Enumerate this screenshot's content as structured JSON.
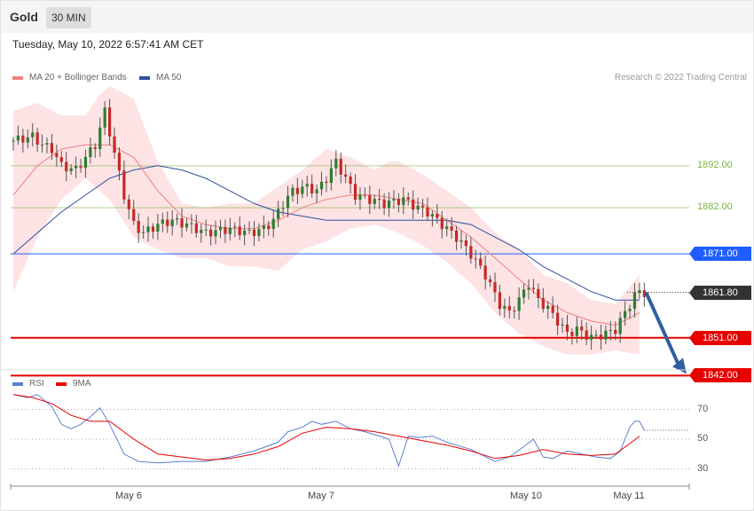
{
  "header": {
    "title": "Gold",
    "timeframe": "30 MIN"
  },
  "datetime": "Tuesday, May 10, 2022 6:57:41 AM CET",
  "legend": {
    "ma20_label": "MA 20 + Bollinger Bands",
    "ma50_label": "MA 50",
    "credit": "Research © 2022 Trading Central"
  },
  "colors": {
    "ma20": "#f08080",
    "ma50": "#2f4f9f",
    "band": "#fde3e3",
    "resistance": "#7cb342",
    "pivot": "#1e5eff",
    "support": "#e60000",
    "last": "#333333",
    "arrow": "#2f5fa0",
    "up": "#2e7d32",
    "down": "#c62828",
    "rsi": "#5b7fd6",
    "rsi_ma": "#e60000"
  },
  "chart_data": [
    {
      "type": "candlestick",
      "title": "Gold",
      "interval": "30 MIN",
      "ylim": [
        1835,
        1917
      ],
      "x_ticks": [
        "May 6",
        "May 7",
        "May 10",
        "May 11"
      ],
      "levels": [
        {
          "label": "1892.00",
          "value": 1892,
          "kind": "resistance"
        },
        {
          "label": "1882.00",
          "value": 1882,
          "kind": "resistance"
        },
        {
          "label": "1871.00",
          "value": 1871,
          "kind": "pivot"
        },
        {
          "label": "1861.80",
          "value": 1861.8,
          "kind": "last"
        },
        {
          "label": "1851.00",
          "value": 1851,
          "kind": "support"
        },
        {
          "label": "1842.00",
          "value": 1842,
          "kind": "support"
        }
      ],
      "close_points": [
        [
          0,
          1898
        ],
        [
          4,
          1899
        ],
        [
          6,
          1897
        ],
        [
          8,
          1896
        ],
        [
          10,
          1892
        ],
        [
          13,
          1891
        ],
        [
          15,
          1894
        ],
        [
          17,
          1897
        ],
        [
          19,
          1905
        ],
        [
          21,
          1895
        ],
        [
          23,
          1885
        ],
        [
          25,
          1878
        ],
        [
          27,
          1876
        ],
        [
          30,
          1878
        ],
        [
          33,
          1879
        ],
        [
          36,
          1878
        ],
        [
          40,
          1876
        ],
        [
          45,
          1877
        ],
        [
          49,
          1876
        ],
        [
          52,
          1877
        ],
        [
          54,
          1879
        ],
        [
          56,
          1883
        ],
        [
          58,
          1886
        ],
        [
          61,
          1887
        ],
        [
          63,
          1886
        ],
        [
          65,
          1889
        ],
        [
          67,
          1893
        ],
        [
          69,
          1889
        ],
        [
          71,
          1885
        ],
        [
          74,
          1884
        ],
        [
          77,
          1883
        ],
        [
          81,
          1884
        ],
        [
          84,
          1882
        ],
        [
          86,
          1881
        ],
        [
          89,
          1878
        ],
        [
          92,
          1875
        ],
        [
          95,
          1871
        ],
        [
          98,
          1866
        ],
        [
          101,
          1859
        ],
        [
          103,
          1857
        ],
        [
          105,
          1860
        ],
        [
          107,
          1864
        ],
        [
          109,
          1860
        ],
        [
          111,
          1858
        ],
        [
          113,
          1855
        ],
        [
          115,
          1852
        ],
        [
          117,
          1853
        ],
        [
          120,
          1851
        ],
        [
          123,
          1852
        ],
        [
          125,
          1853
        ],
        [
          127,
          1857
        ],
        [
          129,
          1861
        ],
        [
          130,
          1862
        ],
        [
          131,
          1861.8
        ]
      ],
      "ma20": [
        [
          0,
          1885
        ],
        [
          5,
          1892
        ],
        [
          10,
          1896
        ],
        [
          15,
          1897
        ],
        [
          20,
          1897
        ],
        [
          25,
          1894
        ],
        [
          30,
          1886
        ],
        [
          35,
          1880
        ],
        [
          40,
          1878
        ],
        [
          45,
          1877
        ],
        [
          50,
          1877
        ],
        [
          55,
          1879
        ],
        [
          60,
          1882
        ],
        [
          65,
          1884
        ],
        [
          70,
          1885
        ],
        [
          75,
          1885
        ],
        [
          80,
          1884
        ],
        [
          85,
          1883
        ],
        [
          90,
          1879
        ],
        [
          95,
          1875
        ],
        [
          100,
          1870
        ],
        [
          105,
          1865
        ],
        [
          110,
          1860
        ],
        [
          115,
          1857
        ],
        [
          120,
          1855
        ],
        [
          125,
          1854
        ],
        [
          130,
          1857
        ]
      ],
      "upper_band": [
        [
          0,
          1905
        ],
        [
          5,
          1907
        ],
        [
          10,
          1904
        ],
        [
          15,
          1904
        ],
        [
          18,
          1909
        ],
        [
          20,
          1911
        ],
        [
          25,
          1908
        ],
        [
          30,
          1893
        ],
        [
          35,
          1883
        ],
        [
          40,
          1882
        ],
        [
          45,
          1883
        ],
        [
          50,
          1883
        ],
        [
          55,
          1887
        ],
        [
          60,
          1891
        ],
        [
          65,
          1896
        ],
        [
          70,
          1894
        ],
        [
          75,
          1891
        ],
        [
          78,
          1893
        ],
        [
          80,
          1893
        ],
        [
          85,
          1890
        ],
        [
          90,
          1886
        ],
        [
          95,
          1882
        ],
        [
          100,
          1876
        ],
        [
          105,
          1872
        ],
        [
          110,
          1866
        ],
        [
          115,
          1864
        ],
        [
          120,
          1860
        ],
        [
          125,
          1859
        ],
        [
          130,
          1866
        ]
      ],
      "lower_band": [
        [
          0,
          1862
        ],
        [
          5,
          1875
        ],
        [
          10,
          1884
        ],
        [
          15,
          1889
        ],
        [
          20,
          1884
        ],
        [
          25,
          1875
        ],
        [
          30,
          1872
        ],
        [
          35,
          1870
        ],
        [
          40,
          1870
        ],
        [
          45,
          1868
        ],
        [
          50,
          1868
        ],
        [
          55,
          1867
        ],
        [
          60,
          1872
        ],
        [
          65,
          1874
        ],
        [
          70,
          1877
        ],
        [
          75,
          1878
        ],
        [
          80,
          1876
        ],
        [
          85,
          1873
        ],
        [
          90,
          1869
        ],
        [
          95,
          1864
        ],
        [
          100,
          1857
        ],
        [
          105,
          1852
        ],
        [
          110,
          1849
        ],
        [
          115,
          1847
        ],
        [
          120,
          1847
        ],
        [
          125,
          1848
        ],
        [
          130,
          1847
        ]
      ],
      "ma50": [
        [
          0,
          1871
        ],
        [
          5,
          1876
        ],
        [
          10,
          1881
        ],
        [
          15,
          1885
        ],
        [
          20,
          1889
        ],
        [
          25,
          1891
        ],
        [
          30,
          1892
        ],
        [
          35,
          1891
        ],
        [
          40,
          1889
        ],
        [
          45,
          1886
        ],
        [
          50,
          1883
        ],
        [
          55,
          1881
        ],
        [
          60,
          1880
        ],
        [
          65,
          1879
        ],
        [
          70,
          1879
        ],
        [
          75,
          1879
        ],
        [
          80,
          1879
        ],
        [
          85,
          1879
        ],
        [
          90,
          1879
        ],
        [
          95,
          1878
        ],
        [
          100,
          1875
        ],
        [
          105,
          1872
        ],
        [
          110,
          1868
        ],
        [
          115,
          1865
        ],
        [
          120,
          1862
        ],
        [
          125,
          1860
        ],
        [
          130,
          1860
        ]
      ]
    },
    {
      "type": "line",
      "title": "RSI",
      "series": [
        {
          "name": "RSI"
        },
        {
          "name": "9MA"
        }
      ],
      "ylim": [
        20,
        85
      ],
      "y_ticks": [
        "70",
        "50",
        "30"
      ],
      "rsi": [
        [
          0,
          80
        ],
        [
          3,
          78
        ],
        [
          5,
          80
        ],
        [
          8,
          72
        ],
        [
          10,
          60
        ],
        [
          12,
          57
        ],
        [
          14,
          60
        ],
        [
          16,
          65
        ],
        [
          18,
          71
        ],
        [
          20,
          60
        ],
        [
          23,
          40
        ],
        [
          26,
          35
        ],
        [
          30,
          34
        ],
        [
          35,
          35
        ],
        [
          40,
          35
        ],
        [
          45,
          38
        ],
        [
          50,
          42
        ],
        [
          55,
          48
        ],
        [
          57,
          55
        ],
        [
          60,
          58
        ],
        [
          62,
          62
        ],
        [
          64,
          60
        ],
        [
          67,
          62
        ],
        [
          70,
          57
        ],
        [
          73,
          55
        ],
        [
          76,
          52
        ],
        [
          78,
          50
        ],
        [
          80,
          32
        ],
        [
          82,
          52
        ],
        [
          84,
          51
        ],
        [
          87,
          52
        ],
        [
          90,
          48
        ],
        [
          95,
          43
        ],
        [
          100,
          35
        ],
        [
          103,
          38
        ],
        [
          106,
          45
        ],
        [
          108,
          50
        ],
        [
          110,
          38
        ],
        [
          112,
          37
        ],
        [
          115,
          42
        ],
        [
          118,
          40
        ],
        [
          121,
          38
        ],
        [
          124,
          37
        ],
        [
          126,
          42
        ],
        [
          128,
          58
        ],
        [
          129,
          62
        ],
        [
          130,
          62
        ],
        [
          131,
          56
        ]
      ],
      "rsi_ma": [
        [
          0,
          80
        ],
        [
          4,
          78
        ],
        [
          8,
          74
        ],
        [
          12,
          66
        ],
        [
          16,
          62
        ],
        [
          20,
          62
        ],
        [
          25,
          50
        ],
        [
          30,
          40
        ],
        [
          35,
          38
        ],
        [
          40,
          36
        ],
        [
          45,
          37
        ],
        [
          50,
          40
        ],
        [
          55,
          45
        ],
        [
          60,
          54
        ],
        [
          65,
          58
        ],
        [
          70,
          57
        ],
        [
          75,
          55
        ],
        [
          80,
          52
        ],
        [
          85,
          49
        ],
        [
          90,
          46
        ],
        [
          95,
          42
        ],
        [
          100,
          37
        ],
        [
          105,
          39
        ],
        [
          110,
          43
        ],
        [
          115,
          40
        ],
        [
          120,
          39
        ],
        [
          125,
          40
        ],
        [
          128,
          47
        ],
        [
          130,
          52
        ]
      ]
    }
  ]
}
